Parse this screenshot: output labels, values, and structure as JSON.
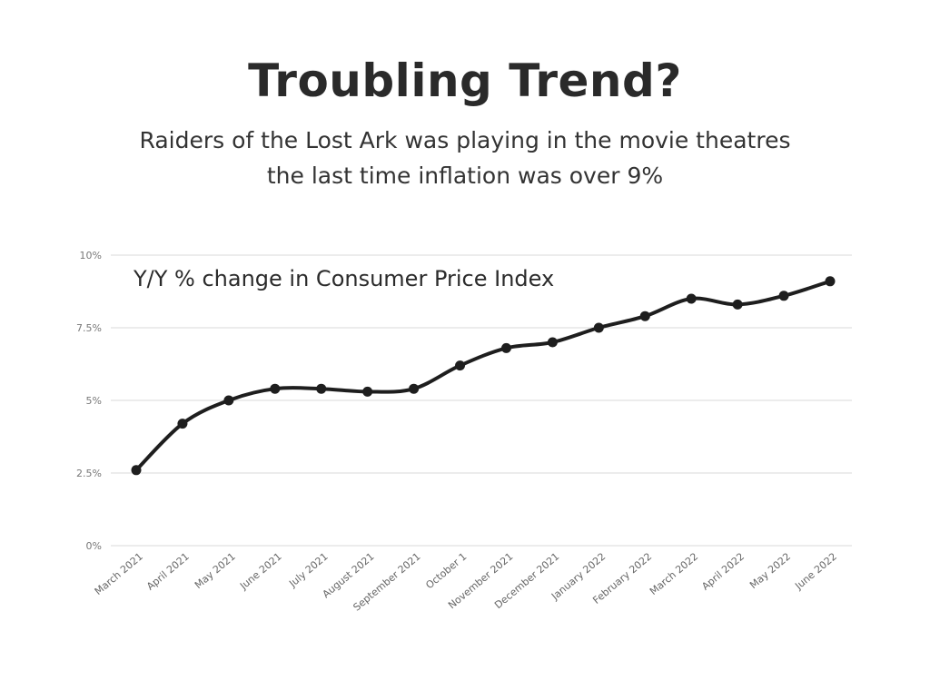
{
  "chart_data": {
    "type": "line",
    "title": "Troubling Trend?",
    "subtitle_lines": [
      "Raiders of the Lost Ark was playing in the movie theatres",
      "the last time inflation was over 9%"
    ],
    "annotation": "Y/Y % change in Consumer Price Index",
    "categories": [
      "March 2021",
      "April 2021",
      "May 2021",
      "June 2021",
      "July 2021",
      "August 2021",
      "September 2021",
      "October 1",
      "November 2021",
      "December 2021",
      "January 2022",
      "February 2022",
      "March 2022",
      "April 2022",
      "May 2022",
      "June 2022"
    ],
    "series": [
      {
        "values": [
          2.6,
          4.2,
          5.0,
          5.4,
          5.4,
          5.3,
          5.4,
          6.2,
          6.8,
          7.0,
          7.5,
          7.9,
          8.5,
          8.3,
          8.6,
          9.1
        ]
      }
    ],
    "y_ticks": [
      "0%",
      "2.5%",
      "5%",
      "7.5%",
      "10%"
    ],
    "y_tick_values": [
      0,
      2.5,
      5,
      7.5,
      10
    ],
    "ylim": [
      0,
      10
    ],
    "xlabel": "",
    "ylabel": "",
    "grid": true,
    "colors": {
      "line": "#1e1e1e",
      "grid": "#e6e6e6"
    }
  }
}
